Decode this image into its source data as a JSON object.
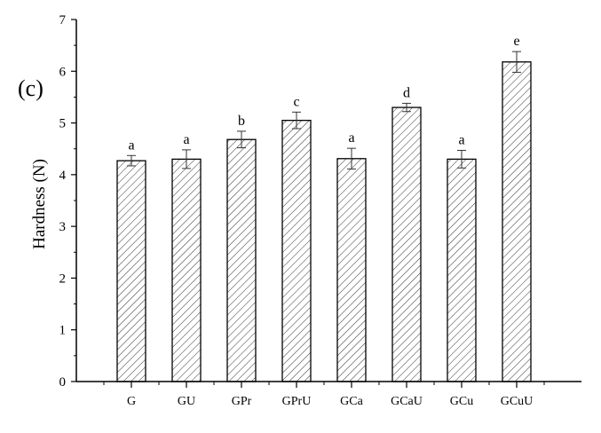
{
  "chart_data": {
    "type": "bar",
    "panel_label": "(c)",
    "title": "",
    "xlabel": "",
    "ylabel": "Hardness (N)",
    "ylim": [
      0,
      7
    ],
    "yticks": [
      "0",
      "1",
      "2",
      "3",
      "4",
      "5",
      "6",
      "7"
    ],
    "categories": [
      "G",
      "GU",
      "GPr",
      "GPrU",
      "GCa",
      "GCaU",
      "GCu",
      "GCuU"
    ],
    "values": [
      4.27,
      4.3,
      4.68,
      5.05,
      4.31,
      5.3,
      4.3,
      6.18
    ],
    "errors": [
      0.1,
      0.18,
      0.16,
      0.16,
      0.2,
      0.08,
      0.17,
      0.2
    ],
    "significance_letters": [
      "a",
      "a",
      "b",
      "c",
      "a",
      "d",
      "a",
      "e"
    ],
    "fill_pattern": "diagonal hatch",
    "bar_color": "#ffffff",
    "edge_color": "#000000",
    "grid": false
  }
}
